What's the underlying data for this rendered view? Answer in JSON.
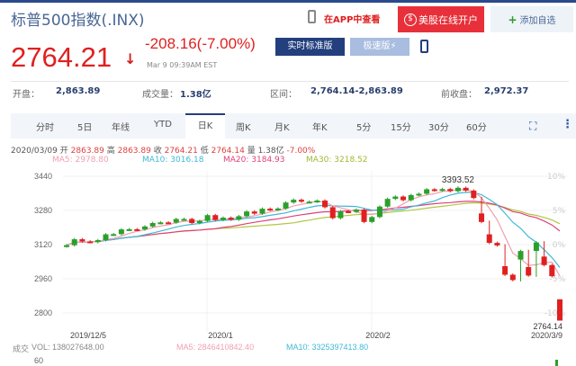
{
  "header": {
    "title": "标普500指数(.INX)",
    "app_link": "在APP中查看",
    "open_account": "美股在线开户",
    "add_watch": "添加自选"
  },
  "quote": {
    "price": "2764.21",
    "change": "-208.16(-7.00%)",
    "time": "Mar 9 09:39AM EST",
    "btn_realtime": "实时标准版",
    "btn_fast": "极速版⚡",
    "price_color": "#e02020"
  },
  "stats": {
    "open_label": "开盘：",
    "open": "2,863.89",
    "volume_label": "成交量：",
    "volume": "1.38亿",
    "range_label": "区间：",
    "range": "2,764.14-2,863.89",
    "prev_label": "前收盘：",
    "prev": "2,972.37"
  },
  "tabs": [
    "分时",
    "5日",
    "年线",
    "YTD",
    "日K",
    "周K",
    "月K",
    "年K",
    "5分",
    "15分",
    "30分",
    "60分"
  ],
  "active_tab": "日K",
  "info": {
    "date": "2020/03/09",
    "o_l": "开",
    "o": "2863.89",
    "h_l": "高",
    "h": "2863.89",
    "c_l": "收",
    "c": "2764.21",
    "l_l": "低",
    "l": "2764.14",
    "v_l": "量",
    "v": "1.38亿",
    "pct": "-7.00%"
  },
  "ma": {
    "ma5": "MA5: 2978.80",
    "ma10": "MA10: 3016.18",
    "ma20": "MA20: 3184.93",
    "ma30": "MA30: 3218.52"
  },
  "volume": {
    "label": "成交",
    "vol": "VOL: 138027648.00",
    "ma5": "MA5: 2846410842.40",
    "ma10": "MA10: 3325397413.80",
    "axis": "60"
  },
  "chart_data": {
    "type": "candlestick",
    "y_ticks": [
      "3440",
      "3280",
      "3120",
      "2960",
      "2800"
    ],
    "ylim": [
      2800,
      3440
    ],
    "pct_ticks": [
      "10%",
      "5%",
      "0%",
      "-5%",
      "-10%"
    ],
    "x_labels": [
      "2019/12/5",
      "2020/1",
      "2020/2",
      "2020/3/9"
    ],
    "high_label": "3393.52",
    "low_label": "2764.14",
    "colors": {
      "down": "#e02020",
      "up": "#2aa02a",
      "ma5": "#f0a0b0",
      "ma10": "#40b8d8",
      "ma20": "#e0407a",
      "ma30": "#b0c840"
    },
    "closes": [
      3117,
      3145,
      3135,
      3132,
      3141,
      3168,
      3169,
      3191,
      3192,
      3191,
      3205,
      3221,
      3224,
      3223,
      3240,
      3240,
      3221,
      3231,
      3258,
      3235,
      3246,
      3237,
      3253,
      3275,
      3265,
      3288,
      3283,
      3289,
      3317,
      3330,
      3321,
      3321,
      3326,
      3295,
      3244,
      3276,
      3273,
      3284,
      3226,
      3249,
      3298,
      3334,
      3345,
      3328,
      3352,
      3358,
      3379,
      3374,
      3380,
      3370,
      3386,
      3373,
      3338,
      3226,
      3128,
      3116,
      2979,
      2954,
      3090,
      2975,
      3130,
      3024,
      2972,
      2764.21
    ],
    "last": {
      "o": 2863.89,
      "h": 2863.89,
      "l": 2764.14,
      "c": 2764.21
    },
    "peak_high": 3393.52
  }
}
